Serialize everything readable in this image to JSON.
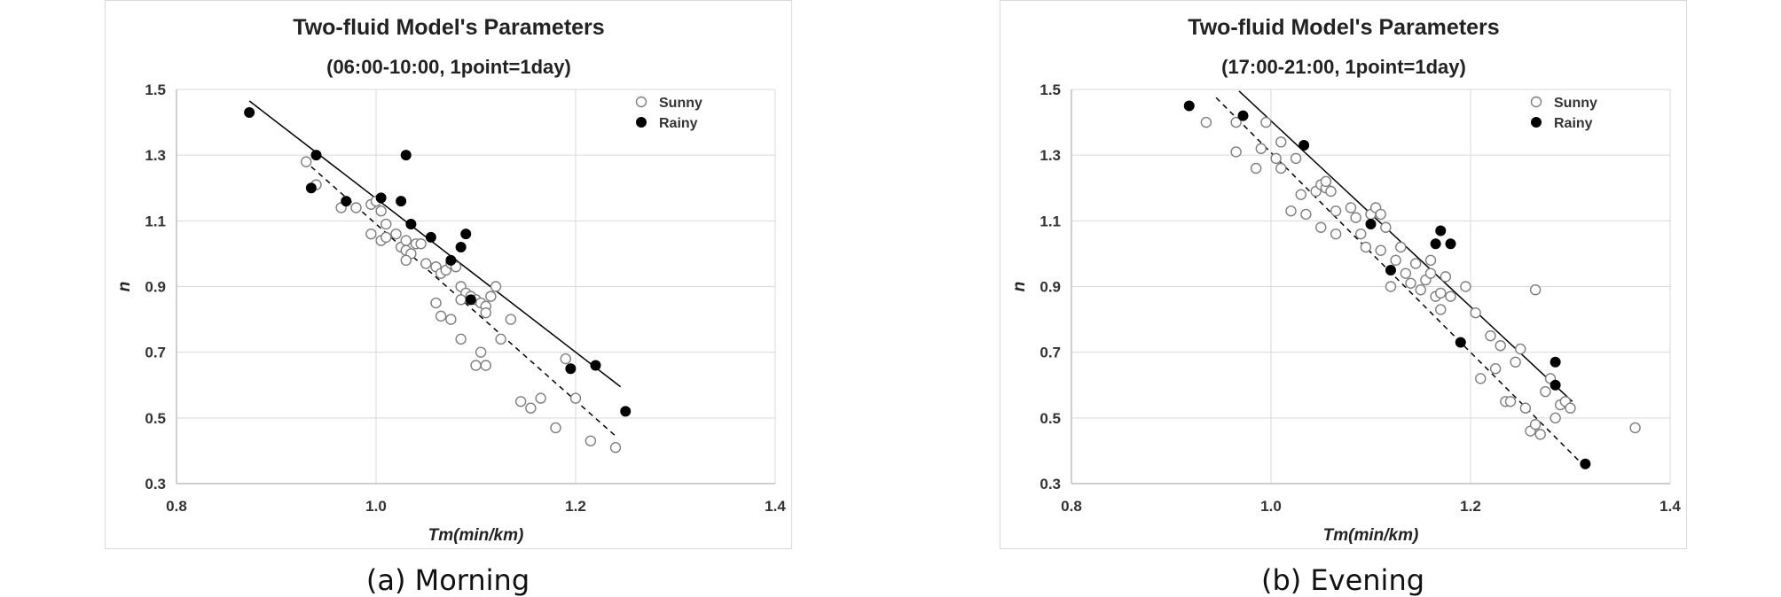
{
  "chart_data": [
    {
      "type": "scatter",
      "title": "Two-fluid Model's Parameters",
      "subtitle": "(06:00-10:00,  1point=1day)",
      "xlabel": "Tm(min/km)",
      "ylabel": "n",
      "xlim": [
        0.8,
        1.4
      ],
      "ylim": [
        0.3,
        1.5
      ],
      "x_ticks": [
        "0.8",
        "1.0",
        "1.2",
        "1.4"
      ],
      "y_ticks": [
        "0.3",
        "0.5",
        "0.7",
        "0.9",
        "1.1",
        "1.3",
        "1.5"
      ],
      "grid": "major",
      "legend_position": "top-right",
      "series": [
        {
          "name": "Sunny",
          "marker": "open-circle",
          "color": "#7f7f7f",
          "points": [
            [
              0.93,
              1.28
            ],
            [
              0.94,
              1.21
            ],
            [
              0.965,
              1.14
            ],
            [
              0.98,
              1.14
            ],
            [
              0.995,
              1.15
            ],
            [
              1.0,
              1.16
            ],
            [
              0.995,
              1.06
            ],
            [
              1.005,
              1.13
            ],
            [
              1.01,
              1.09
            ],
            [
              1.005,
              1.04
            ],
            [
              1.01,
              1.05
            ],
            [
              1.02,
              1.06
            ],
            [
              1.025,
              1.02
            ],
            [
              1.03,
              1.01
            ],
            [
              1.03,
              1.04
            ],
            [
              1.035,
              1.0
            ],
            [
              1.04,
              1.03
            ],
            [
              1.045,
              1.03
            ],
            [
              1.03,
              0.98
            ],
            [
              1.05,
              0.97
            ],
            [
              1.06,
              0.96
            ],
            [
              1.065,
              0.94
            ],
            [
              1.07,
              0.95
            ],
            [
              1.075,
              0.97
            ],
            [
              1.08,
              0.96
            ],
            [
              1.085,
              0.9
            ],
            [
              1.09,
              0.88
            ],
            [
              1.095,
              0.87
            ],
            [
              1.1,
              0.86
            ],
            [
              1.105,
              0.85
            ],
            [
              1.11,
              0.84
            ],
            [
              1.115,
              0.87
            ],
            [
              1.12,
              0.9
            ],
            [
              1.11,
              0.82
            ],
            [
              1.085,
              0.86
            ],
            [
              1.06,
              0.85
            ],
            [
              1.065,
              0.81
            ],
            [
              1.075,
              0.8
            ],
            [
              1.085,
              0.74
            ],
            [
              1.1,
              0.66
            ],
            [
              1.105,
              0.7
            ],
            [
              1.11,
              0.66
            ],
            [
              1.125,
              0.74
            ],
            [
              1.135,
              0.8
            ],
            [
              1.145,
              0.55
            ],
            [
              1.155,
              0.53
            ],
            [
              1.165,
              0.56
            ],
            [
              1.18,
              0.47
            ],
            [
              1.19,
              0.68
            ],
            [
              1.2,
              0.56
            ],
            [
              1.215,
              0.43
            ],
            [
              1.24,
              0.41
            ]
          ]
        },
        {
          "name": "Rainy",
          "marker": "filled-circle",
          "color": "#000000",
          "points": [
            [
              0.873,
              1.43
            ],
            [
              0.935,
              1.2
            ],
            [
              0.94,
              1.3
            ],
            [
              0.97,
              1.16
            ],
            [
              1.005,
              1.17
            ],
            [
              1.025,
              1.16
            ],
            [
              1.03,
              1.3
            ],
            [
              1.035,
              1.09
            ],
            [
              1.055,
              1.05
            ],
            [
              1.075,
              0.98
            ],
            [
              1.085,
              1.02
            ],
            [
              1.09,
              1.06
            ],
            [
              1.095,
              0.86
            ],
            [
              1.195,
              0.65
            ],
            [
              1.22,
              0.66
            ],
            [
              1.25,
              0.52
            ]
          ]
        }
      ],
      "trendlines": [
        {
          "series": "Rainy",
          "style": "solid",
          "x": [
            0.873,
            1.245
          ],
          "y": [
            1.465,
            0.595
          ]
        },
        {
          "series": "Sunny",
          "style": "dashed",
          "x": [
            0.935,
            1.24
          ],
          "y": [
            1.265,
            0.445
          ]
        }
      ]
    },
    {
      "type": "scatter",
      "title": "Two-fluid Model's Parameters",
      "subtitle": "(17:00-21:00,  1point=1day)",
      "xlabel": "Tm(min/km)",
      "ylabel": "n",
      "xlim": [
        0.8,
        1.4
      ],
      "ylim": [
        0.3,
        1.5
      ],
      "x_ticks": [
        "0.8",
        "1.0",
        "1.2",
        "1.4"
      ],
      "y_ticks": [
        "0.3",
        "0.5",
        "0.7",
        "0.9",
        "1.1",
        "1.3",
        "1.5"
      ],
      "grid": "major",
      "legend_position": "top-right",
      "series": [
        {
          "name": "Sunny",
          "marker": "open-circle",
          "color": "#7f7f7f",
          "points": [
            [
              0.935,
              1.4
            ],
            [
              0.965,
              1.31
            ],
            [
              0.965,
              1.4
            ],
            [
              0.985,
              1.26
            ],
            [
              0.99,
              1.32
            ],
            [
              0.995,
              1.4
            ],
            [
              1.005,
              1.29
            ],
            [
              1.01,
              1.34
            ],
            [
              1.01,
              1.26
            ],
            [
              1.02,
              1.13
            ],
            [
              1.025,
              1.29
            ],
            [
              1.03,
              1.18
            ],
            [
              1.035,
              1.12
            ],
            [
              1.045,
              1.19
            ],
            [
              1.05,
              1.21
            ],
            [
              1.055,
              1.2
            ],
            [
              1.06,
              1.19
            ],
            [
              1.065,
              1.13
            ],
            [
              1.065,
              1.06
            ],
            [
              1.05,
              1.08
            ],
            [
              1.08,
              1.14
            ],
            [
              1.085,
              1.11
            ],
            [
              1.09,
              1.06
            ],
            [
              1.095,
              1.02
            ],
            [
              1.1,
              1.12
            ],
            [
              1.105,
              1.14
            ],
            [
              1.11,
              1.12
            ],
            [
              1.115,
              1.08
            ],
            [
              1.12,
              0.9
            ],
            [
              1.125,
              0.98
            ],
            [
              1.13,
              1.02
            ],
            [
              1.135,
              0.94
            ],
            [
              1.14,
              0.91
            ],
            [
              1.145,
              0.97
            ],
            [
              1.15,
              0.89
            ],
            [
              1.155,
              0.92
            ],
            [
              1.16,
              0.94
            ],
            [
              1.165,
              0.87
            ],
            [
              1.17,
              0.88
            ],
            [
              1.175,
              0.93
            ],
            [
              1.17,
              0.83
            ],
            [
              1.18,
              0.87
            ],
            [
              1.195,
              0.9
            ],
            [
              1.205,
              0.82
            ],
            [
              1.21,
              0.62
            ],
            [
              1.22,
              0.75
            ],
            [
              1.225,
              0.65
            ],
            [
              1.23,
              0.72
            ],
            [
              1.235,
              0.55
            ],
            [
              1.24,
              0.55
            ],
            [
              1.245,
              0.67
            ],
            [
              1.25,
              0.71
            ],
            [
              1.255,
              0.53
            ],
            [
              1.26,
              0.46
            ],
            [
              1.265,
              0.48
            ],
            [
              1.265,
              0.89
            ],
            [
              1.27,
              0.45
            ],
            [
              1.275,
              0.58
            ],
            [
              1.28,
              0.62
            ],
            [
              1.285,
              0.5
            ],
            [
              1.29,
              0.54
            ],
            [
              1.295,
              0.55
            ],
            [
              1.3,
              0.53
            ],
            [
              1.365,
              0.47
            ],
            [
              1.055,
              1.22
            ],
            [
              1.11,
              1.01
            ],
            [
              1.16,
              0.98
            ]
          ]
        },
        {
          "name": "Rainy",
          "marker": "filled-circle",
          "color": "#000000",
          "points": [
            [
              0.918,
              1.45
            ],
            [
              0.972,
              1.42
            ],
            [
              1.033,
              1.33
            ],
            [
              1.1,
              1.09
            ],
            [
              1.12,
              0.95
            ],
            [
              1.165,
              1.03
            ],
            [
              1.17,
              1.07
            ],
            [
              1.18,
              1.03
            ],
            [
              1.19,
              0.73
            ],
            [
              1.285,
              0.67
            ],
            [
              1.285,
              0.6
            ],
            [
              1.315,
              0.36
            ]
          ]
        }
      ],
      "trendlines": [
        {
          "series": "Rainy",
          "style": "solid",
          "x": [
            0.968,
            1.302
          ],
          "y": [
            1.495,
            0.55
          ]
        },
        {
          "series": "Sunny",
          "style": "dashed",
          "x": [
            0.945,
            1.315
          ],
          "y": [
            1.475,
            0.35
          ]
        }
      ]
    }
  ],
  "captions": [
    "(a) Morning",
    "(b) Evening"
  ]
}
